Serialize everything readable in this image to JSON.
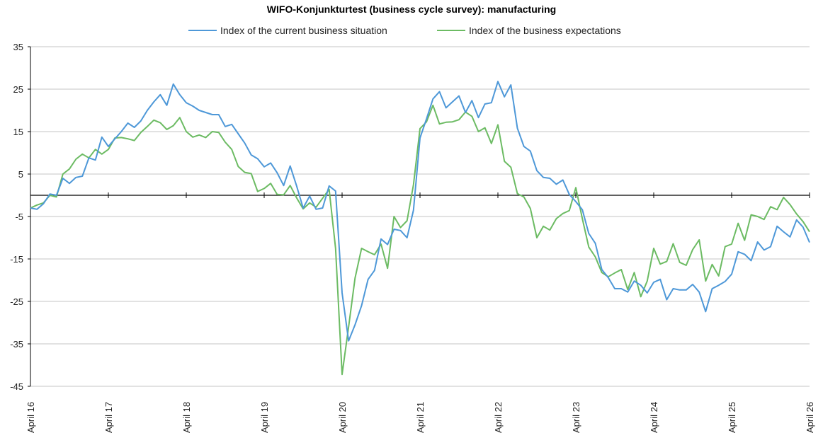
{
  "chart_data": {
    "type": "line",
    "title": "WIFO-Konjunkturtest (business cycle survey): manufacturing",
    "xlabel": "",
    "ylabel": "",
    "ylim": [
      -45,
      35
    ],
    "yticks": [
      35,
      25,
      15,
      5,
      -5,
      -15,
      -25,
      -35,
      -45
    ],
    "xtick_labels": [
      "April 16",
      "April 17",
      "April 18",
      "April 19",
      "April 20",
      "April 21",
      "April 22",
      "April 23",
      "April 24",
      "April 25",
      "April 26"
    ],
    "x_unit": "monthly observations from April 2016 to April 2026",
    "grid": true,
    "legend_position": "top-center",
    "colors": {
      "current": "#4e98d8",
      "expectations": "#6cbb63",
      "grid": "#d9d9d9",
      "axis": "#000000"
    },
    "series": [
      {
        "name": "Index of the current business situation",
        "values": [
          -3,
          -3.3,
          -2,
          0.3,
          0,
          4,
          2.8,
          4.2,
          4.5,
          8.8,
          8.3,
          13.7,
          11.5,
          13.3,
          15,
          17,
          16,
          17.5,
          20,
          22,
          23.7,
          21.2,
          26.2,
          23.7,
          21.8,
          21,
          20,
          19.5,
          19,
          19,
          16.2,
          16.7,
          14.5,
          12.3,
          9.5,
          8.6,
          6.7,
          7.6,
          5.3,
          2.3,
          6.9,
          2.2,
          -3,
          -0.2,
          -3.3,
          -3,
          2.2,
          1,
          -23,
          -34.3,
          -30.5,
          -26,
          -19.8,
          -17.7,
          -10.3,
          -11.6,
          -8,
          -8.3,
          -10,
          -3.5,
          13.5,
          18,
          22.7,
          24.4,
          20.6,
          22,
          23.4,
          19.5,
          22.3,
          18.3,
          21.5,
          21.8,
          26.8,
          23.2,
          26,
          15.8,
          11.5,
          10.4,
          5.8,
          4.2,
          4,
          2.6,
          3.6,
          0.2,
          -1.5,
          -3.4,
          -9,
          -11.3,
          -17.5,
          -19.4,
          -22,
          -22,
          -22.8,
          -20.2,
          -21.2,
          -23,
          -20.5,
          -19.8,
          -24.6,
          -22,
          -22.3,
          -22.3,
          -21,
          -22.8,
          -27.4,
          -22,
          -21.2,
          -20.3,
          -18.6,
          -13.3,
          -13.9,
          -15.4,
          -11,
          -12.9,
          -12.1,
          -7.3,
          -8.6,
          -9.8,
          -5.8,
          -7.5,
          -11.1
        ]
      },
      {
        "name": "Index of the business expectations",
        "values": [
          -3,
          -2.3,
          -1.8,
          0,
          -0.4,
          5,
          6.2,
          8.5,
          9.7,
          8.8,
          10.8,
          9.7,
          10.8,
          13.5,
          13.6,
          13.3,
          12.9,
          14.8,
          16.2,
          17.7,
          17.1,
          15.5,
          16.4,
          18.3,
          15,
          13.7,
          14.2,
          13.6,
          15,
          14.8,
          12.5,
          10.8,
          6.8,
          5.4,
          5.1,
          0.9,
          1.6,
          2.8,
          0.2,
          0.1,
          2.3,
          -0.6,
          -3.2,
          -1.8,
          -2.8,
          -0.7,
          1.4,
          -12.5,
          -42.2,
          -31,
          -19.5,
          -12.5,
          -13.3,
          -14,
          -11.5,
          -17.2,
          -5,
          -7.6,
          -6,
          2.5,
          15.7,
          17.3,
          21.2,
          16.8,
          17.2,
          17.3,
          17.8,
          19.6,
          18.6,
          15,
          15.9,
          12.2,
          16.6,
          8,
          6.6,
          0.4,
          -0.4,
          -3.1,
          -10,
          -7.3,
          -8.2,
          -5.5,
          -4.3,
          -3.6,
          1.8,
          -5.5,
          -12.2,
          -14.5,
          -18.2,
          -19.2,
          -18.3,
          -17.5,
          -22.2,
          -18.2,
          -23.9,
          -20.2,
          -12.5,
          -16.2,
          -15.6,
          -11.4,
          -15.8,
          -16.5,
          -12.8,
          -10.5,
          -20.2,
          -16.3,
          -19,
          -12.1,
          -11.5,
          -6.6,
          -10.6,
          -4.6,
          -5,
          -5.7,
          -2.7,
          -3.4,
          -0.5,
          -2.2,
          -4.4,
          -6.2,
          -8.6
        ]
      }
    ]
  }
}
